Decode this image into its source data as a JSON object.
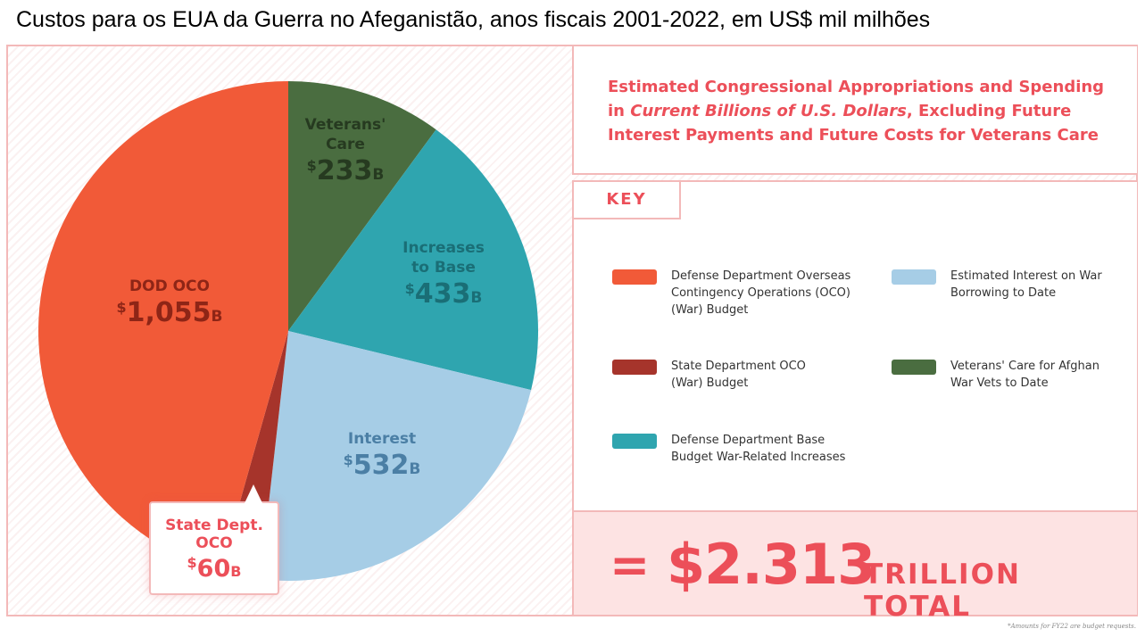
{
  "page_title": "Custos para os EUA da Guerra no Afeganistão, anos fiscais 2001-2022, em US$ mil milhões",
  "subtitle": {
    "line1": "Estimated Congressional Appropriations and Spending in",
    "italic": "Current Billions of U.S. Dollars",
    "rest": ", Excluding Future Interest Payments and Future Costs for Veterans Care"
  },
  "key_label": "KEY",
  "legend": [
    {
      "label": "Defense Department Overseas Contingency Operations (OCO) (War) Budget",
      "color": "#f15a38"
    },
    {
      "label": "State Department OCO (War) Budget",
      "color": "#a6342b"
    },
    {
      "label": "Defense Department Base Budget War-Related Increases",
      "color": "#2fa5af"
    },
    {
      "label": "Estimated Interest on War Borrowing to Date",
      "color": "#a6cde6"
    },
    {
      "label": "Veterans' Care for Afghan War Vets to Date",
      "color": "#4a6d40"
    }
  ],
  "total": {
    "eq": "=",
    "value": "$2.313",
    "unit": "TRILLION TOTAL"
  },
  "footnote": "*Amounts for FY22 are budget requests.",
  "chart_data": {
    "type": "pie",
    "unit": "B",
    "slices": [
      {
        "name": "Veterans' Care",
        "value": 233,
        "display": "233",
        "color": "#4a6d40",
        "label_color": "#263a20"
      },
      {
        "name": "Increases to Base",
        "value": 433,
        "display": "433",
        "color": "#2fa5af",
        "label_color": "#1a6e76"
      },
      {
        "name": "Interest",
        "value": 532,
        "display": "532",
        "color": "#a6cde6",
        "label_color": "#4b7fa5"
      },
      {
        "name": "State Dept. OCO",
        "value": 60,
        "display": "60",
        "color": "#a6342b",
        "label_color": "#ec4f59"
      },
      {
        "name": "DOD OCO",
        "value": 1055,
        "display": "1,055",
        "color": "#f15a38",
        "label_color": "#8e2516"
      }
    ]
  }
}
